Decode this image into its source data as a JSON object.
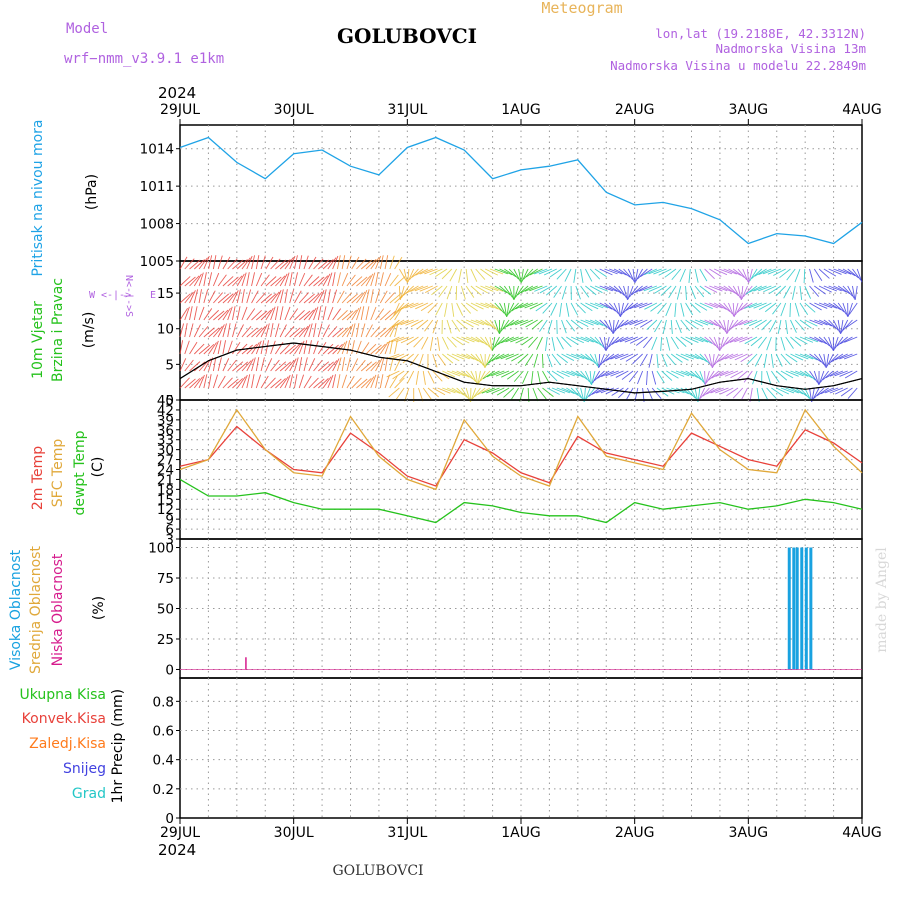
{
  "header": {
    "model_label": "Model",
    "model_name": "wrf−nmm_v3.9.1  e1km",
    "station": "GOLUBOVCI",
    "meteogram": "Meteogram",
    "lonlat": "lon,lat (19.2188E, 42.3312N)",
    "altitude": "Nadmorska Visina 13m",
    "model_altitude": "Nadmorska Visina u modelu 22.2849m",
    "bottom_station": "GOLUBOVCI",
    "credit": "made by Angel"
  },
  "colors": {
    "pressure": "#1fa3e6",
    "t2m": "#e8413a",
    "sfc": "#e0a83a",
    "dew": "#25c21c",
    "visoka": "#19a2e0",
    "srednja": "#e0a83a",
    "niska": "#d61a8c",
    "ukupna": "#25c21c",
    "konvek": "#e8413a",
    "zaledj": "#ff7b1c",
    "snijeg": "#4242e0",
    "grad": "#24c7c7",
    "compass": "#b062e0",
    "title_purple": "#b062e0",
    "meteogram_orange": "#e8b45a"
  },
  "chart_data": [
    {
      "id": "pressure",
      "type": "line",
      "ylabel": "Pritisak na nivou mora",
      "unit": "(hPa)",
      "yticks": [
        1005,
        1008,
        1011,
        1014
      ],
      "ylim": [
        1005,
        1015.9
      ],
      "x_days": [
        0,
        0.25,
        0.5,
        0.75,
        1,
        1.25,
        1.5,
        1.75,
        2,
        2.25,
        2.5,
        2.75,
        3,
        3.25,
        3.5,
        3.75,
        4,
        4.25,
        4.5,
        4.75,
        5,
        5.25,
        5.5,
        5.75,
        6
      ],
      "series": [
        {
          "name": "",
          "values": [
            1014.1,
            1014.9,
            1012.9,
            1011.6,
            1013.6,
            1013.9,
            1012.6,
            1011.9,
            1014.1,
            1014.9,
            1013.9,
            1011.6,
            1012.3,
            1012.6,
            1013.1,
            1010.5,
            1009.5,
            1009.7,
            1009.2,
            1008.3,
            1006.4,
            1007.2,
            1007.0,
            1006.4,
            1008.1
          ]
        }
      ]
    },
    {
      "id": "wind",
      "type": "line",
      "ylabel": "10m Vjetar Brzina i Pravac",
      "unit": "(m/s)",
      "compass": "N, S, E, W",
      "yticks": [
        0,
        5,
        10,
        15
      ],
      "ylim": [
        0,
        19.5
      ],
      "x_days": [
        0,
        0.25,
        0.5,
        0.75,
        1,
        1.25,
        1.5,
        1.75,
        2,
        2.25,
        2.5,
        2.75,
        3,
        3.25,
        3.5,
        3.75,
        4,
        4.25,
        4.5,
        4.75,
        5,
        5.25,
        5.5,
        5.75,
        6
      ],
      "series": [
        {
          "name": "speed",
          "values": [
            3.0,
            5.5,
            7.0,
            7.5,
            8.0,
            7.5,
            7.0,
            6.0,
            5.5,
            4.0,
            2.5,
            2.0,
            2.0,
            2.5,
            2.0,
            1.5,
            1.0,
            1.2,
            1.5,
            2.5,
            3.0,
            2.0,
            1.5,
            2.0,
            3.0
          ]
        }
      ]
    },
    {
      "id": "temperature",
      "type": "line",
      "ylabel": [
        "2m Temp",
        "SFC Temp",
        "dewpt Temp"
      ],
      "unit": "(C)",
      "yticks": [
        3,
        6,
        9,
        12,
        15,
        18,
        21,
        24,
        27,
        30,
        33,
        36,
        39,
        42,
        45
      ],
      "ylim": [
        3,
        45
      ],
      "x_days": [
        0,
        0.25,
        0.5,
        0.75,
        1,
        1.25,
        1.5,
        1.75,
        2,
        2.25,
        2.5,
        2.75,
        3,
        3.25,
        3.5,
        3.75,
        4,
        4.25,
        4.5,
        4.75,
        5,
        5.25,
        5.5,
        5.75,
        6
      ],
      "series": [
        {
          "name": "2m Temp",
          "values": [
            25,
            27,
            37,
            30,
            24,
            23,
            35,
            29,
            22,
            19,
            33,
            29,
            23,
            20,
            34,
            29,
            27,
            25,
            35,
            31,
            27,
            25,
            36,
            32,
            26
          ]
        },
        {
          "name": "SFC Temp",
          "values": [
            24,
            27,
            42,
            30,
            23,
            22,
            40,
            28,
            21,
            18,
            39,
            28,
            22,
            19,
            40,
            28,
            26,
            24,
            41,
            30,
            24,
            23,
            42,
            31,
            23
          ]
        },
        {
          "name": "dewpt Temp",
          "values": [
            21,
            16,
            16,
            17,
            14,
            12,
            12,
            12,
            10,
            8,
            14,
            13,
            11,
            10,
            10,
            8,
            14,
            12,
            13,
            14,
            12,
            13,
            15,
            14,
            12
          ]
        }
      ]
    },
    {
      "id": "cloud",
      "type": "bar",
      "ylabel": [
        "Visoka Oblacnost",
        "Srednja Oblacnost",
        "Niska Oblacnost"
      ],
      "unit": "(%)",
      "yticks": [
        0,
        25,
        50,
        75,
        100
      ],
      "ylim": [
        -7,
        107
      ],
      "bars": [
        {
          "series": "Visoka",
          "x": 5.36,
          "value": 100
        },
        {
          "series": "Visoka",
          "x": 5.4,
          "value": 100
        },
        {
          "series": "Visoka",
          "x": 5.43,
          "value": 100
        },
        {
          "series": "Visoka",
          "x": 5.47,
          "value": 100
        },
        {
          "series": "Visoka",
          "x": 5.51,
          "value": 100
        },
        {
          "series": "Visoka",
          "x": 5.55,
          "value": 100
        },
        {
          "series": "Niska",
          "x": 0.58,
          "value": 10
        }
      ]
    },
    {
      "id": "precip",
      "type": "line",
      "ylabel": "1hr Precip",
      "unit": "(mm)",
      "legend": [
        "Ukupna Kisa",
        "Konvek.Kisa",
        "Zaledj.Kisa",
        "Snijeg",
        "Grad"
      ],
      "yticks": [
        0,
        0.2,
        0.4,
        0.6,
        0.8
      ],
      "ylim": [
        0,
        0.96
      ],
      "values": []
    }
  ],
  "time_axis": {
    "year": "2024",
    "labels": [
      "29JUL",
      "30JUL",
      "31JUL",
      "1AUG",
      "2AUG",
      "3AUG",
      "4AUG"
    ]
  }
}
